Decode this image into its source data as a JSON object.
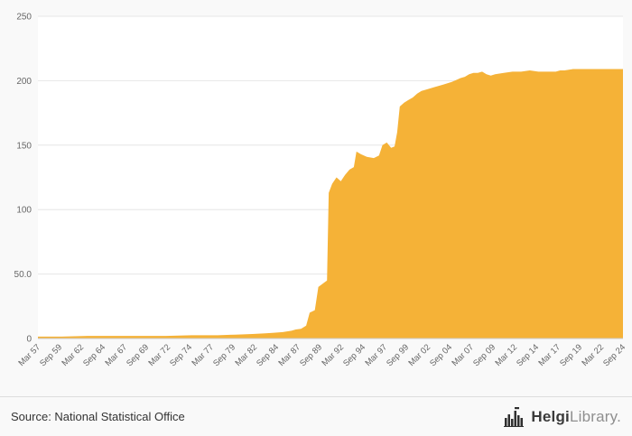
{
  "chart": {
    "title": "",
    "source": "Source: National Statistical Office",
    "brand": {
      "name_bold": "Helgi",
      "name_light": "Library."
    },
    "chart_data": {
      "type": "area",
      "title": "",
      "xlabel": "",
      "ylabel": "",
      "legend": "none",
      "grid": true,
      "fill_color": "#F5B237",
      "plot_bg": "#ffffff",
      "grid_color": "#e6e6e6",
      "axis_color": "#cccccc",
      "tick_color": "#666666",
      "ylim": [
        0,
        250
      ],
      "xlim": [
        1957.25,
        2024.75
      ],
      "yticks": [
        0,
        50,
        100,
        150,
        200,
        250
      ],
      "ytick_labels": [
        "0",
        "50.0",
        "100",
        "150",
        "200",
        "250"
      ],
      "x_tick_years": [
        1957.25,
        1959.75,
        1962.25,
        1964.75,
        1967.25,
        1969.75,
        1972.25,
        1974.75,
        1977.25,
        1979.75,
        1982.25,
        1984.75,
        1987.25,
        1989.75,
        1992.25,
        1994.75,
        1997.25,
        1999.75,
        2002.25,
        2004.75,
        2007.25,
        2009.75,
        2012.25,
        2014.75,
        2017.25,
        2019.75,
        2022.25,
        2024.75
      ],
      "x_tick_labels": [
        "Mar 57",
        "Sep 59",
        "Mar 62",
        "Sep 64",
        "Mar 67",
        "Sep 69",
        "Mar 72",
        "Sep 74",
        "Mar 77",
        "Sep 79",
        "Mar 82",
        "Sep 84",
        "Mar 87",
        "Sep 89",
        "Mar 92",
        "Sep 94",
        "Mar 97",
        "Sep 99",
        "Mar 02",
        "Sep 04",
        "Mar 07",
        "Sep 09",
        "Mar 12",
        "Sep 14",
        "Mar 17",
        "Sep 19",
        "Mar 22",
        "Sep 24"
      ],
      "x": [
        1957.25,
        1960,
        1963,
        1966,
        1969,
        1972,
        1975,
        1978,
        1980,
        1982,
        1983.5,
        1984.5,
        1985.5,
        1986.5,
        1987,
        1987.6,
        1988.2,
        1988.6,
        1989.2,
        1989.6,
        1990.2,
        1990.6,
        1990.8,
        1991.2,
        1991.7,
        1992.2,
        1992.7,
        1993.2,
        1993.7,
        1994,
        1994.5,
        1995.2,
        1996,
        1996.6,
        1997,
        1997.5,
        1998,
        1998.4,
        1998.7,
        1999,
        1999.5,
        2000,
        2000.5,
        2001,
        2001.5,
        2002,
        2003,
        2004,
        2005,
        2006,
        2006.5,
        2007,
        2007.5,
        2008,
        2008.5,
        2009,
        2009.5,
        2010,
        2011,
        2012,
        2013,
        2014,
        2015,
        2016,
        2017,
        2017.5,
        2018,
        2019,
        2020,
        2021,
        2022,
        2023,
        2024,
        2024.75
      ],
      "y": [
        1.5,
        1.5,
        2,
        2,
        2,
        2,
        2.5,
        2.5,
        3,
        3.5,
        4,
        4.5,
        5,
        6,
        7,
        7.5,
        10,
        20,
        22,
        40,
        43,
        45,
        113,
        120,
        125,
        122,
        127,
        131,
        133,
        145,
        143,
        141,
        140,
        142,
        150,
        152,
        148,
        149,
        160,
        180,
        183,
        185,
        187,
        190,
        192,
        193,
        195,
        197,
        199,
        202,
        203,
        205,
        206,
        206,
        207,
        205,
        204,
        205,
        206,
        207,
        207,
        208,
        207,
        207,
        207,
        208,
        208,
        209,
        209,
        209,
        209,
        209,
        209,
        209
      ]
    }
  }
}
